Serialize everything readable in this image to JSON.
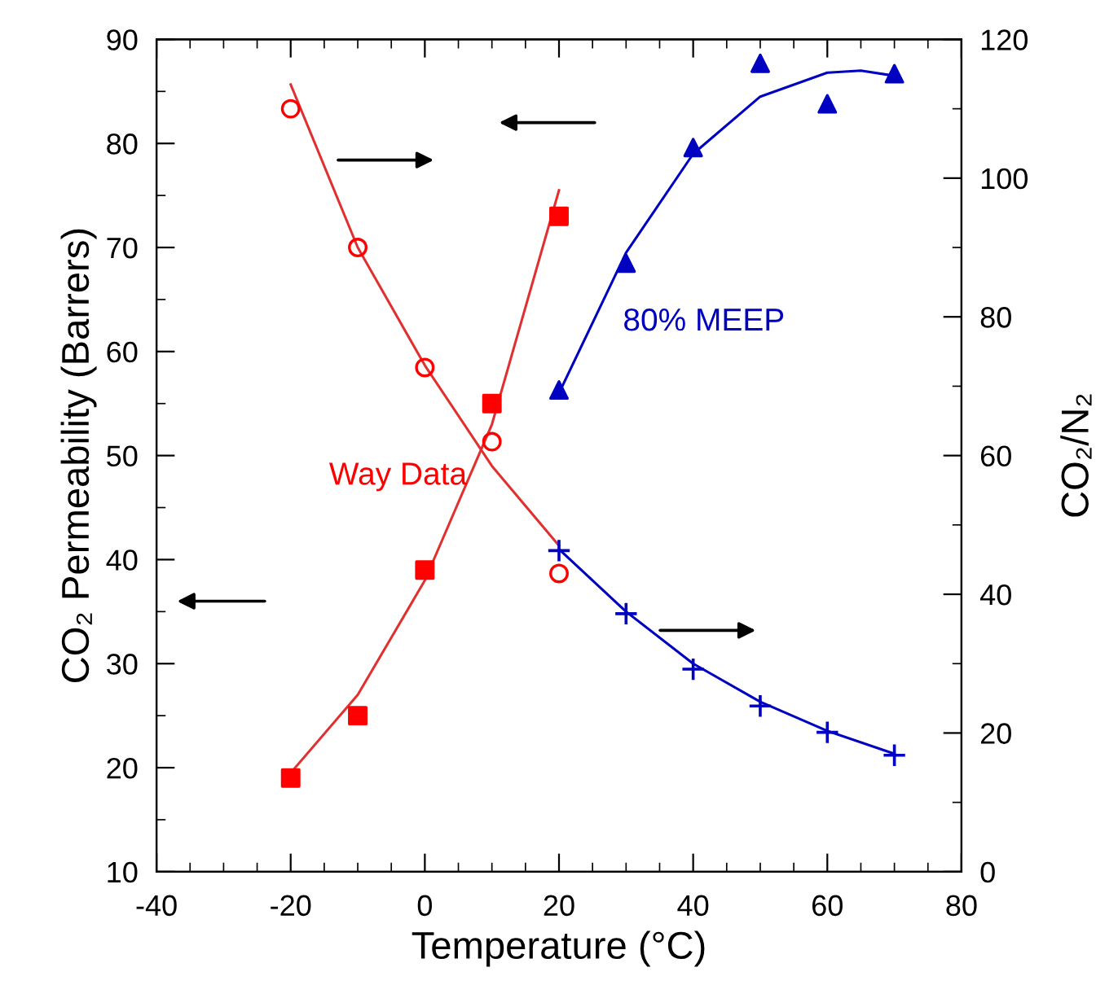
{
  "chart_data": {
    "type": "scatter",
    "xlabel": "Temperature (°C)",
    "ylabel": "CO₂ Permeability (Barrers)",
    "y2label": "CO₂/N₂",
    "xlim": [
      -40,
      80
    ],
    "xticks": [
      -40,
      -20,
      0,
      20,
      40,
      60,
      80
    ],
    "ylim": [
      10,
      90
    ],
    "yticks": [
      10,
      20,
      30,
      40,
      50,
      60,
      70,
      80,
      90
    ],
    "y2lim": [
      0,
      120
    ],
    "y2ticks": [
      0,
      20,
      40,
      60,
      80,
      100,
      120
    ],
    "grid": false,
    "legend": false,
    "series": [
      {
        "marker": "square",
        "color": "#ff0000",
        "x": [
          -20,
          -10,
          0,
          10,
          20
        ],
        "values": [
          19,
          25,
          39,
          55,
          73
        ]
      },
      {
        "marker": "triangle",
        "color": "#0000c0",
        "x": [
          20,
          30,
          40,
          50,
          60,
          70
        ],
        "values": [
          56.3,
          68.5,
          79.6,
          87.7,
          83.8,
          86.7
        ]
      },
      {
        "marker": "circle",
        "axis": "y2",
        "color": "#ff0000",
        "x": [
          -20,
          -10,
          0,
          10,
          20
        ],
        "values": [
          110,
          90,
          72.7,
          62,
          43
        ]
      },
      {
        "marker": "cross",
        "axis": "y2",
        "color": "#0000c0",
        "x": [
          20,
          30,
          40,
          50,
          60,
          70
        ],
        "values": [
          46.3,
          37.2,
          29.2,
          23.9,
          20.1,
          16.8
        ]
      },
      {
        "type": "line",
        "marker": "none",
        "color": "#e03030",
        "x": [
          -20,
          -10,
          0,
          10,
          20
        ],
        "values": [
          19.5,
          27,
          38,
          53,
          75.5
        ]
      },
      {
        "type": "line",
        "marker": "none",
        "color": "#0000c0",
        "x": [
          20,
          30,
          40,
          50,
          60,
          65,
          70
        ],
        "values": [
          56,
          69.5,
          79,
          84.5,
          86.8,
          87,
          86.5
        ]
      },
      {
        "type": "line",
        "marker": "none",
        "axis": "y2",
        "color": "#e03030",
        "x": [
          -20,
          -10,
          0,
          10,
          20
        ],
        "values": [
          113.5,
          90,
          73,
          58.5,
          47
        ]
      },
      {
        "type": "line",
        "marker": "none",
        "axis": "y2",
        "color": "#0000c0",
        "x": [
          20,
          30,
          40,
          50,
          60,
          70
        ],
        "values": [
          46.5,
          37.5,
          30,
          24.5,
          20.3,
          17
        ]
      }
    ],
    "annotations": [
      "Way Data",
      "80% MEEP"
    ]
  }
}
